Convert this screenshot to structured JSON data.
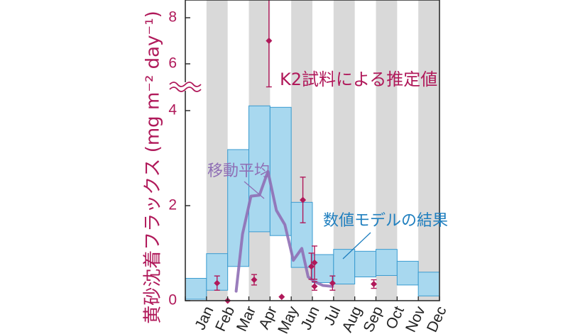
{
  "chart_data": {
    "type": "bar",
    "categories": [
      "Jan",
      "Feb",
      "Mar",
      "Apr",
      "May",
      "Jun",
      "Jul",
      "Aug",
      "Sep",
      "Oct",
      "Nov",
      "Dec"
    ],
    "ylabel": "黄砂沈着フラックス (mg m⁻² day⁻¹)",
    "y_ticks": [
      "0",
      "2",
      "4",
      "6",
      "8"
    ],
    "y_axis_break": "between 4 and 6",
    "model_range": {
      "name": "数値モデルの結果",
      "low": [
        0.03,
        0.22,
        0.72,
        1.45,
        1.37,
        0.7,
        0.38,
        0.35,
        0.5,
        0.53,
        0.33,
        0.1
      ],
      "high": [
        0.47,
        0.99,
        3.18,
        4.1,
        4.07,
        2.07,
        0.97,
        1.08,
        1.04,
        1.08,
        0.83,
        0.6
      ]
    },
    "k2_samples": {
      "name": "K2試料による推定値",
      "points": [
        {
          "x": 1.5,
          "y": 0.37,
          "err_low": 0.22,
          "err_high": 0.52
        },
        {
          "x": 2.0,
          "y": 0.0,
          "err_low": 0.0,
          "err_high": 0.0
        },
        {
          "x": 3.25,
          "y": 0.44,
          "err_low": 0.33,
          "err_high": 0.55
        },
        {
          "x": 4.55,
          "y": 0.08,
          "err_low": 0.08,
          "err_high": 0.08
        },
        {
          "x": 3.95,
          "y": 7.0,
          "err_low": 5.0,
          "err_high": 8.8
        },
        {
          "x": 5.55,
          "y": 2.12,
          "err_low": 1.64,
          "err_high": 2.6
        },
        {
          "x": 5.95,
          "y": 0.72,
          "err_low": 0.45,
          "err_high": 1.0
        },
        {
          "x": 6.1,
          "y": 0.8,
          "err_low": 0.45,
          "err_high": 1.15
        },
        {
          "x": 6.1,
          "y": 0.3,
          "err_low": 0.22,
          "err_high": 0.4
        },
        {
          "x": 6.95,
          "y": 0.37,
          "err_low": 0.22,
          "err_high": 0.52
        },
        {
          "x": 8.9,
          "y": 0.35,
          "err_low": 0.26,
          "err_high": 0.44
        }
      ]
    },
    "moving_average": {
      "name": "移動平均",
      "x": [
        2.4,
        2.7,
        3.1,
        3.5,
        3.9,
        4.3,
        4.7,
        5.1,
        5.5,
        5.8,
        6.1,
        6.5,
        6.95
      ],
      "y": [
        0.2,
        1.4,
        2.2,
        2.22,
        2.72,
        1.9,
        1.6,
        0.85,
        1.1,
        0.5,
        0.4,
        0.32,
        0.3
      ]
    },
    "colors": {
      "stripe": "#d9d9d9",
      "bar_fill": "#a8d8ef",
      "bar_stroke": "#3a9bd0",
      "points": "#b0195a",
      "moving_average": "#8f6fb5",
      "model_label": "#1f7fbf",
      "axis_label": "#b0195a"
    }
  }
}
